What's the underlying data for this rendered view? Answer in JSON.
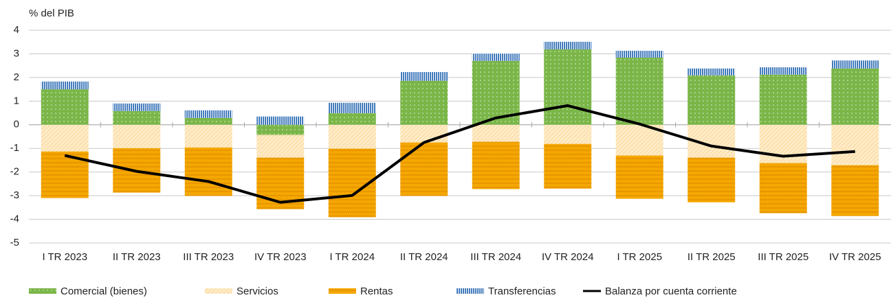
{
  "chart_data": {
    "type": "bar",
    "stacked": true,
    "y_label": "% del PIB",
    "categories": [
      "I TR 2023",
      "II TR 2023",
      "III TR 2023",
      "IV TR 2023",
      "I TR 2024",
      "II TR 2024",
      "III TR 2024",
      "IV TR 2024",
      "I TR 2025",
      "II TR 2025",
      "III TR 2025",
      "IV TR 2025"
    ],
    "series": [
      {
        "name": "Comercial (bienes)",
        "color": "#7ab648",
        "kind": "bar",
        "values": [
          1.5,
          0.58,
          0.29,
          -0.43,
          0.49,
          1.86,
          2.7,
          3.19,
          2.84,
          2.09,
          2.12,
          2.38
        ]
      },
      {
        "name": "Servicios",
        "color": "#fde2b0",
        "kind": "bar",
        "values": [
          -1.13,
          -0.99,
          -0.96,
          -0.96,
          -1.01,
          -0.75,
          -0.72,
          -0.81,
          -1.3,
          -1.39,
          -1.62,
          -1.71
        ]
      },
      {
        "name": "Rentas",
        "color": "#f5a800",
        "kind": "bar",
        "values": [
          -1.97,
          -1.88,
          -2.05,
          -2.18,
          -2.9,
          -2.26,
          -2.0,
          -1.89,
          -1.83,
          -1.89,
          -2.12,
          -2.15
        ]
      },
      {
        "name": "Transferencias",
        "color": "#2e6db4",
        "kind": "bar",
        "values": [
          0.33,
          0.32,
          0.32,
          0.35,
          0.44,
          0.37,
          0.31,
          0.32,
          0.29,
          0.29,
          0.31,
          0.34
        ]
      },
      {
        "name": "Balanza por cuenta corriente",
        "color": "#000000",
        "kind": "line",
        "values": [
          -1.3,
          -1.97,
          -2.4,
          -3.28,
          -2.99,
          -0.75,
          0.29,
          0.81,
          0.03,
          -0.9,
          -1.33,
          -1.13
        ]
      }
    ],
    "ylim": [
      -5,
      4
    ],
    "yticks": [
      -5,
      -4,
      -3,
      -2,
      -1,
      0,
      1,
      2,
      3,
      4
    ],
    "grid": true
  }
}
